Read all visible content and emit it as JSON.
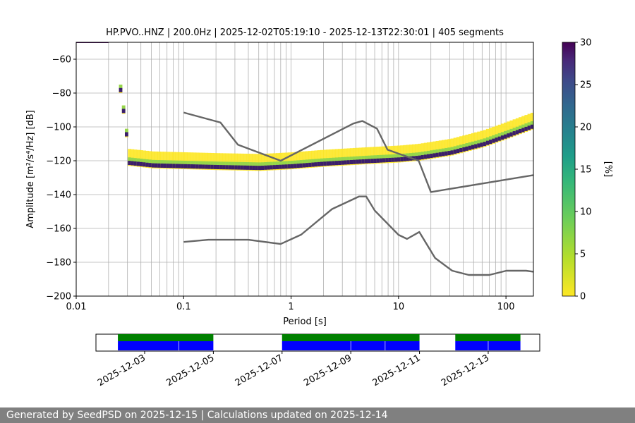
{
  "chart_data": [
    {
      "type": "heatmap",
      "title": "HP.PVO..HNZ | 200.0Hz | 2025-12-02T05:19:10 - 2025-12-13T22:30:01 | 405 segments",
      "xlabel": "Period [s]",
      "ylabel": "Amplitude [m²/s⁴/Hz] [dB]",
      "xscale": "log",
      "xlim": [
        0.01,
        180
      ],
      "ylim": [
        -200,
        -50
      ],
      "xticks": [
        0.01,
        0.1,
        1,
        10,
        100
      ],
      "xtick_labels": [
        "0.01",
        "0.1",
        "1",
        "10",
        "100"
      ],
      "yticks": [
        -200,
        -180,
        -160,
        -140,
        -120,
        -100,
        -80,
        -60
      ],
      "ytick_labels": [
        "−200",
        "−180",
        "−160",
        "−140",
        "−120",
        "−100",
        "−80",
        "−60"
      ],
      "grid": true,
      "colormap": "viridis_r",
      "colorbar": {
        "label": "[%]",
        "range": [
          0,
          30
        ],
        "ticks": [
          0,
          5,
          10,
          15,
          20,
          25,
          30
        ],
        "tick_labels": [
          "0",
          "5",
          "10",
          "15",
          "20",
          "25",
          "30"
        ]
      },
      "model_curves": [
        {
          "name": "high-noise-model",
          "color": "#666666",
          "x": [
            0.1,
            0.22,
            0.32,
            0.8,
            3.8,
            4.6,
            6.3,
            7.9,
            15.4,
            20,
            180
          ],
          "y": [
            -91.5,
            -97.4,
            -110.5,
            -120,
            -98,
            -96.5,
            -101,
            -113.5,
            -120,
            -138.5,
            -128.5
          ]
        },
        {
          "name": "low-noise-model",
          "color": "#666666",
          "x": [
            0.1,
            0.17,
            0.4,
            0.8,
            1.24,
            2.4,
            4.3,
            5.0,
            6.0,
            10,
            12,
            15.6,
            21.9,
            31.6,
            45,
            70,
            101,
            154,
            180
          ],
          "y": [
            -168,
            -166.7,
            -166.7,
            -169.2,
            -163.7,
            -148.6,
            -141.1,
            -141.1,
            -149.4,
            -163.8,
            -166.2,
            -162.1,
            -177.5,
            -185,
            -187.5,
            -187.5,
            -185,
            -185,
            -185.6
          ]
        }
      ],
      "psd_modes": [
        {
          "name": "dominant-mode",
          "x": [
            0.01,
            0.02,
            0.022,
            0.023,
            0.025,
            0.028,
            0.03,
            0.05,
            0.1,
            0.2,
            0.5,
            1,
            2,
            5,
            10,
            15,
            30,
            60,
            100,
            180
          ],
          "y": [
            -50,
            -50,
            -54,
            -63,
            -78,
            -100,
            -121,
            -122.5,
            -123,
            -123.5,
            -124,
            -123,
            -121.5,
            -120,
            -119,
            -118,
            -115,
            -110,
            -105,
            -99
          ],
          "percent": 30
        }
      ]
    },
    {
      "type": "timeline",
      "xticks": [
        "2025-12-03",
        "2025-12-05",
        "2025-12-07",
        "2025-12-09",
        "2025-12-11",
        "2025-12-13"
      ],
      "xlim": [
        "2025-12-01T14:00",
        "2025-12-14T12:00"
      ],
      "colors": {
        "availability": "#008000",
        "processed": "#0000ff"
      },
      "availability": [
        [
          "2025-12-02T05:19",
          "2025-12-05T00:00"
        ],
        [
          "2025-12-07T00:00",
          "2025-12-11T00:00"
        ],
        [
          "2025-12-12T01:00",
          "2025-12-13T22:30"
        ]
      ],
      "processed": [
        [
          "2025-12-02T05:19",
          "2025-12-03T23:50"
        ],
        [
          "2025-12-04T00:10",
          "2025-12-05T00:00"
        ],
        [
          "2025-12-07T00:00",
          "2025-12-08T23:50"
        ],
        [
          "2025-12-09T00:10",
          "2025-12-09T23:50"
        ],
        [
          "2025-12-10T00:10",
          "2025-12-11T00:00"
        ],
        [
          "2025-12-12T01:00",
          "2025-12-12T23:50"
        ],
        [
          "2025-12-13T00:10",
          "2025-12-13T22:30"
        ]
      ]
    }
  ],
  "footer": {
    "text": "Generated by SeedPSD on 2025-12-15 | Calculations updated on 2025-12-14"
  }
}
